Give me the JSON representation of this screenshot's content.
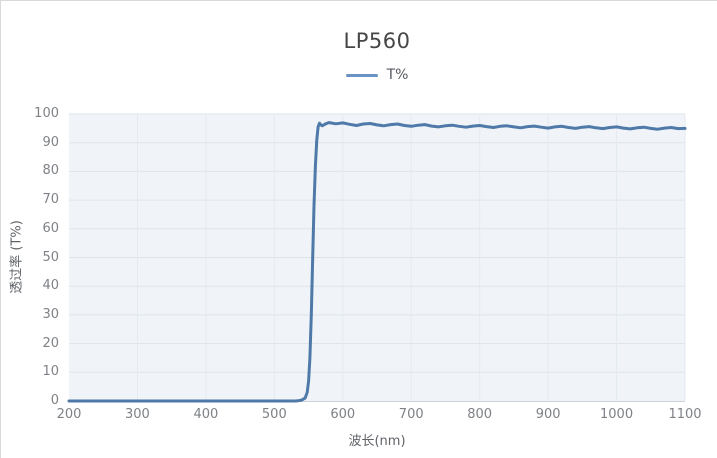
{
  "title": "LP560",
  "legend": {
    "label": "T%",
    "line_color": "#6a93c3"
  },
  "colors": {
    "line": "#4e79a8",
    "plot_bg": "#f0f4f8",
    "h_grid": "#dee3e8",
    "v_grid": "#e3eaf1",
    "axis_line": "#ccd2d8",
    "tick_text": "#7e8287",
    "title_text": "#464646"
  },
  "chart_data": {
    "type": "line",
    "title": "LP560",
    "xlabel": "波长(nm)",
    "ylabel": "透过率 (T%)",
    "xlim": [
      200,
      1100
    ],
    "ylim": [
      0,
      100
    ],
    "x_ticks": [
      200,
      300,
      400,
      500,
      600,
      700,
      800,
      900,
      1000,
      1100
    ],
    "y_ticks": [
      0,
      10,
      20,
      30,
      40,
      50,
      60,
      70,
      80,
      90,
      100
    ],
    "grid": true,
    "legend_position": "top",
    "series": [
      {
        "name": "T%",
        "points": [
          [
            200,
            0
          ],
          [
            250,
            0
          ],
          [
            300,
            0
          ],
          [
            350,
            0
          ],
          [
            400,
            0
          ],
          [
            450,
            0
          ],
          [
            500,
            0
          ],
          [
            520,
            0
          ],
          [
            530,
            0
          ],
          [
            535,
            0.1
          ],
          [
            540,
            0.3
          ],
          [
            545,
            1
          ],
          [
            548,
            3
          ],
          [
            550,
            7
          ],
          [
            552,
            15
          ],
          [
            554,
            30
          ],
          [
            556,
            50
          ],
          [
            558,
            68
          ],
          [
            560,
            82
          ],
          [
            562,
            91
          ],
          [
            564,
            95.5
          ],
          [
            566,
            96.8
          ],
          [
            568,
            96.2
          ],
          [
            570,
            95.9
          ],
          [
            573,
            96.3
          ],
          [
            576,
            96.7
          ],
          [
            580,
            97.0
          ],
          [
            590,
            96.6
          ],
          [
            600,
            96.9
          ],
          [
            610,
            96.4
          ],
          [
            620,
            96.0
          ],
          [
            630,
            96.5
          ],
          [
            640,
            96.7
          ],
          [
            650,
            96.2
          ],
          [
            660,
            95.9
          ],
          [
            670,
            96.3
          ],
          [
            680,
            96.5
          ],
          [
            690,
            96.0
          ],
          [
            700,
            95.7
          ],
          [
            710,
            96.1
          ],
          [
            720,
            96.3
          ],
          [
            730,
            95.8
          ],
          [
            740,
            95.5
          ],
          [
            750,
            95.9
          ],
          [
            760,
            96.1
          ],
          [
            770,
            95.7
          ],
          [
            780,
            95.4
          ],
          [
            790,
            95.8
          ],
          [
            800,
            96.0
          ],
          [
            810,
            95.6
          ],
          [
            820,
            95.3
          ],
          [
            830,
            95.7
          ],
          [
            840,
            95.9
          ],
          [
            850,
            95.5
          ],
          [
            860,
            95.2
          ],
          [
            870,
            95.6
          ],
          [
            880,
            95.8
          ],
          [
            890,
            95.4
          ],
          [
            900,
            95.1
          ],
          [
            910,
            95.5
          ],
          [
            920,
            95.7
          ],
          [
            930,
            95.3
          ],
          [
            940,
            95.0
          ],
          [
            950,
            95.4
          ],
          [
            960,
            95.6
          ],
          [
            970,
            95.2
          ],
          [
            980,
            94.9
          ],
          [
            990,
            95.3
          ],
          [
            1000,
            95.5
          ],
          [
            1010,
            95.1
          ],
          [
            1020,
            94.8
          ],
          [
            1030,
            95.2
          ],
          [
            1040,
            95.4
          ],
          [
            1050,
            95.0
          ],
          [
            1060,
            94.7
          ],
          [
            1070,
            95.1
          ],
          [
            1080,
            95.3
          ],
          [
            1090,
            94.9
          ],
          [
            1100,
            95.0
          ]
        ]
      }
    ]
  }
}
